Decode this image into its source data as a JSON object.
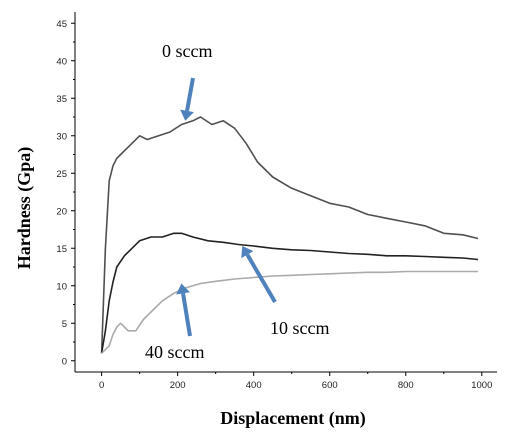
{
  "chart_data": {
    "type": "line",
    "xlabel": "Displacement (nm)",
    "ylabel": "Hardness (Gpa)",
    "xlim": [
      -70,
      1040
    ],
    "ylim": [
      -1.5,
      46.5
    ],
    "xticks": [
      0,
      200,
      400,
      600,
      800,
      1000
    ],
    "yticks": [
      0,
      5,
      10,
      15,
      20,
      25,
      30,
      35,
      40,
      45
    ],
    "grid": false,
    "series": [
      {
        "color": "#505050",
        "x": [
          0,
          10,
          20,
          30,
          40,
          50,
          60,
          80,
          100,
          120,
          150,
          180,
          210,
          240,
          260,
          290,
          320,
          350,
          380,
          410,
          450,
          500,
          550,
          600,
          650,
          700,
          750,
          800,
          850,
          900,
          950,
          990
        ],
        "y": [
          1,
          15,
          24,
          26,
          27,
          27.5,
          28,
          29,
          30,
          29.5,
          30,
          30.5,
          31.5,
          32,
          32.5,
          31.5,
          32,
          31,
          29,
          26.5,
          24.5,
          23,
          22,
          21,
          20.5,
          19.5,
          19,
          18.5,
          18,
          17,
          16.8,
          16.3
        ]
      },
      {
        "color": "#222222",
        "x": [
          0,
          10,
          20,
          30,
          40,
          60,
          80,
          100,
          130,
          160,
          190,
          210,
          240,
          280,
          320,
          360,
          400,
          450,
          500,
          550,
          600,
          650,
          700,
          750,
          800,
          850,
          900,
          950,
          990
        ],
        "y": [
          1,
          4,
          8,
          10.5,
          12.5,
          14,
          15,
          16,
          16.5,
          16.5,
          17,
          17,
          16.5,
          16,
          15.8,
          15.5,
          15.3,
          15,
          14.8,
          14.7,
          14.5,
          14.3,
          14.2,
          14,
          14,
          13.9,
          13.8,
          13.7,
          13.5
        ]
      },
      {
        "color": "#aaaaaa",
        "x": [
          0,
          20,
          30,
          40,
          50,
          60,
          70,
          90,
          110,
          130,
          160,
          190,
          220,
          260,
          300,
          350,
          400,
          450,
          500,
          550,
          600,
          650,
          700,
          750,
          800,
          850,
          900,
          950,
          990
        ],
        "y": [
          1,
          2,
          3.5,
          4.5,
          5,
          4.5,
          4,
          4,
          5.5,
          6.5,
          8,
          9,
          9.7,
          10.3,
          10.6,
          10.9,
          11.1,
          11.3,
          11.4,
          11.5,
          11.6,
          11.7,
          11.8,
          11.8,
          11.9,
          11.9,
          11.9,
          11.9,
          11.9
        ]
      }
    ],
    "annotations": [
      {
        "text": "0 sccm",
        "arrow_to": [
          220,
          32
        ]
      },
      {
        "text": "10 sccm",
        "arrow_to": [
          370,
          15.3
        ]
      },
      {
        "text": "40 sccm",
        "arrow_to": [
          210,
          10.3
        ]
      }
    ]
  },
  "colors": {
    "arrow": "#4f81bd",
    "axis": "#000000"
  }
}
